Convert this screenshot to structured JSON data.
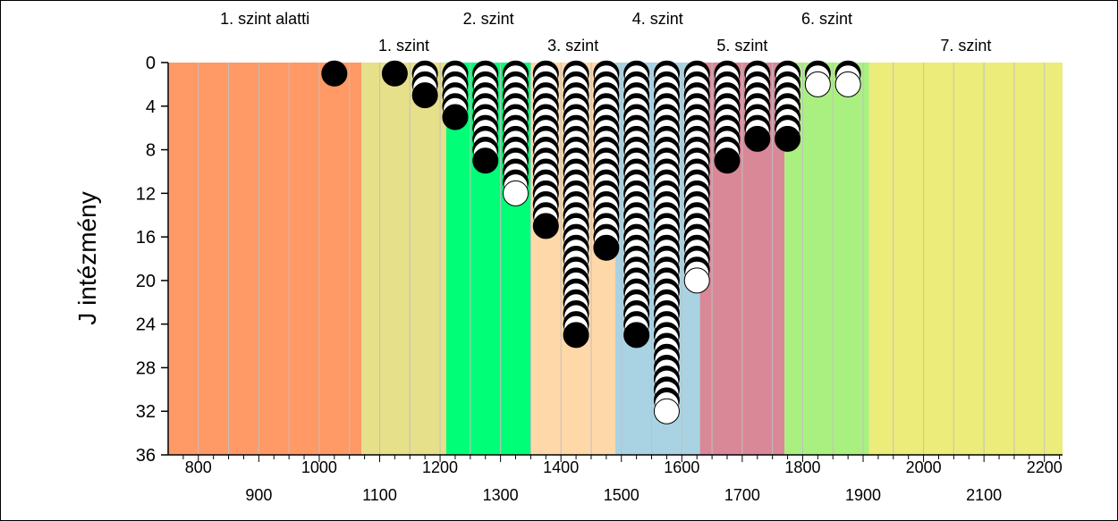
{
  "chart_data": {
    "type": "dot-histogram",
    "ylabel": "J intézmény",
    "xlim": [
      750,
      2230
    ],
    "ylim": [
      0,
      36
    ],
    "yticks": [
      0,
      4,
      8,
      12,
      16,
      20,
      24,
      28,
      32,
      36
    ],
    "xticks_top_row": [
      800,
      1000,
      1200,
      1400,
      1600,
      1800,
      2000,
      2200
    ],
    "xticks_bottom_row": [
      900,
      1100,
      1300,
      1500,
      1700,
      1900,
      2100
    ],
    "bands": [
      {
        "label": "1. szint alatti",
        "from": 750,
        "to": 1070,
        "color": "#FF9966",
        "label_row": 1
      },
      {
        "label": "1. szint",
        "from": 1070,
        "to": 1210,
        "color": "#E6E08A",
        "label_row": 2
      },
      {
        "label": "2. szint",
        "from": 1210,
        "to": 1350,
        "color": "#00FF77",
        "label_row": 1
      },
      {
        "label": "3. szint",
        "from": 1350,
        "to": 1490,
        "color": "#FFD8AA",
        "label_row": 2
      },
      {
        "label": "4. szint",
        "from": 1490,
        "to": 1630,
        "color": "#A9D3E3",
        "label_row": 1
      },
      {
        "label": "5. szint",
        "from": 1630,
        "to": 1770,
        "color": "#D98898",
        "label_row": 2
      },
      {
        "label": "6. szint",
        "from": 1770,
        "to": 1910,
        "color": "#AAF080",
        "label_row": 1
      },
      {
        "label": "7. szint",
        "from": 1910,
        "to": 2230,
        "color": "#ECEC7A",
        "label_row": 2
      }
    ],
    "columns": [
      {
        "x": 1025,
        "count": 1,
        "highlight_last": false
      },
      {
        "x": 1125,
        "count": 1,
        "highlight_last": false
      },
      {
        "x": 1175,
        "count": 3,
        "highlight_last": false
      },
      {
        "x": 1225,
        "count": 5,
        "highlight_last": false
      },
      {
        "x": 1275,
        "count": 9,
        "highlight_last": false
      },
      {
        "x": 1325,
        "count": 12,
        "highlight_last": true
      },
      {
        "x": 1375,
        "count": 15,
        "highlight_last": false
      },
      {
        "x": 1425,
        "count": 25,
        "highlight_last": false
      },
      {
        "x": 1475,
        "count": 17,
        "highlight_last": false
      },
      {
        "x": 1525,
        "count": 25,
        "highlight_last": false
      },
      {
        "x": 1575,
        "count": 32,
        "highlight_last": true
      },
      {
        "x": 1625,
        "count": 20,
        "highlight_last": true
      },
      {
        "x": 1675,
        "count": 9,
        "highlight_last": false
      },
      {
        "x": 1725,
        "count": 7,
        "highlight_last": false
      },
      {
        "x": 1775,
        "count": 7,
        "highlight_last": false
      },
      {
        "x": 1825,
        "count": 2,
        "highlight_last": true
      },
      {
        "x": 1875,
        "count": 2,
        "highlight_last": true
      }
    ],
    "colors": {
      "dot_fill": "#000000",
      "dot_highlight": "#FFFFFF",
      "grid": "#C0C0C0",
      "axis": "#000000"
    }
  }
}
